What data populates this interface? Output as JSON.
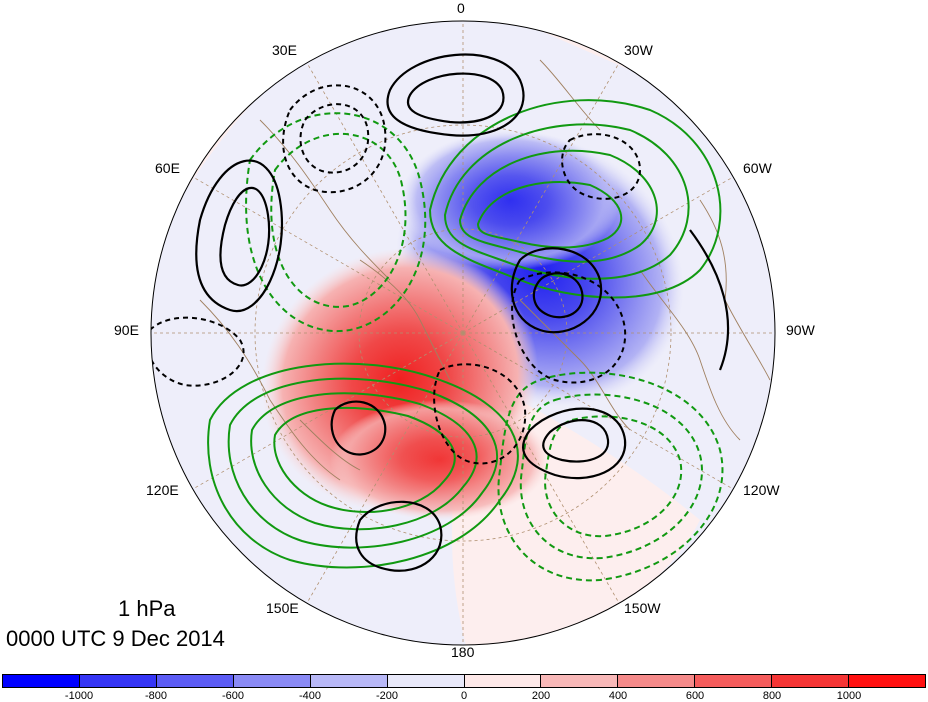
{
  "title": {
    "level": "1 hPa",
    "time": "0000 UTC 9 Dec 2014"
  },
  "longitude_labels": [
    {
      "text": "0",
      "bearing_deg": 0
    },
    {
      "text": "30W",
      "bearing_deg": 30
    },
    {
      "text": "60W",
      "bearing_deg": 60
    },
    {
      "text": "90W",
      "bearing_deg": 90
    },
    {
      "text": "120W",
      "bearing_deg": 120
    },
    {
      "text": "150W",
      "bearing_deg": 150
    },
    {
      "text": "180",
      "bearing_deg": 180
    },
    {
      "text": "150E",
      "bearing_deg": 210
    },
    {
      "text": "120E",
      "bearing_deg": 240
    },
    {
      "text": "90E",
      "bearing_deg": 270
    },
    {
      "text": "60E",
      "bearing_deg": 300
    },
    {
      "text": "30E",
      "bearing_deg": 330
    }
  ],
  "colorbar": {
    "ticks": [
      "-1000",
      "-800",
      "-600",
      "-400",
      "-200",
      "0",
      "200",
      "400",
      "600",
      "800",
      "1000"
    ],
    "colors": [
      "#0000ff",
      "#3535f5",
      "#5c5cf5",
      "#8a8af5",
      "#b8b8f7",
      "#e8e8f9",
      "#fde8e8",
      "#f8b8b8",
      "#f58a8a",
      "#f55c5c",
      "#f53535",
      "#ff1010"
    ]
  },
  "colors": {
    "negative_shading": "#3a3aee",
    "positive_shading": "#ee3a3a",
    "green_contour": "#119911",
    "black_contour": "#000000",
    "coastline": "#a08060",
    "grid": "#b09070"
  }
}
